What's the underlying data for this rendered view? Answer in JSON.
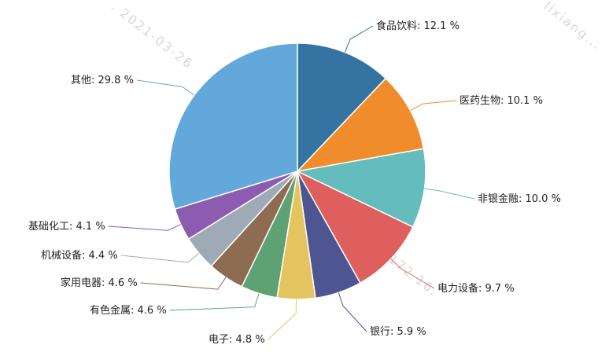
{
  "watermarks": [
    {
      "text": ". 2021-03-26"
    },
    {
      "text": "lixiang..."
    },
    {
      "text": "lixiang.c 172.16."
    }
  ],
  "chart_data": {
    "type": "pie",
    "title": "",
    "unit": "%",
    "slices": [
      {
        "name": "食品饮料",
        "value": 12.1,
        "color": "#3574a2"
      },
      {
        "name": "医药生物",
        "value": 10.1,
        "color": "#f18c2d"
      },
      {
        "name": "非银金融",
        "value": 10.0,
        "color": "#65bcbc"
      },
      {
        "name": "电力设备",
        "value": 9.7,
        "color": "#de5f5e"
      },
      {
        "name": "银行",
        "value": 5.9,
        "color": "#4e5590"
      },
      {
        "name": "电子",
        "value": 4.8,
        "color": "#e4c45f"
      },
      {
        "name": "有色金属",
        "value": 4.6,
        "color": "#5ea273"
      },
      {
        "name": "家用电器",
        "value": 4.6,
        "color": "#8d6c52"
      },
      {
        "name": "机械设备",
        "value": 4.4,
        "color": "#9eaab5"
      },
      {
        "name": "基础化工",
        "value": 4.1,
        "color": "#8b5cb0"
      },
      {
        "name": "其他",
        "value": 29.8,
        "color": "#62a8da"
      }
    ]
  }
}
